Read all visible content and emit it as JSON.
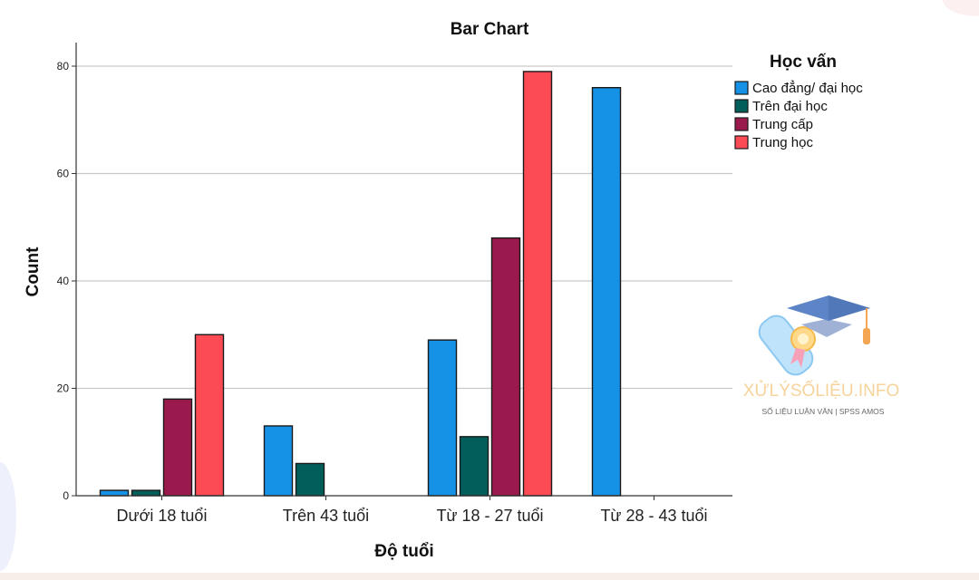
{
  "chart_data": {
    "type": "bar",
    "title": "Bar Chart",
    "xlabel": "Độ tuổi",
    "ylabel": "Count",
    "categories": [
      "Dưới 18 tuổi",
      "Trên 43 tuổi",
      "Từ 18 - 27 tuổi",
      "Từ 28 - 43 tuổi"
    ],
    "ylim": [
      0,
      80
    ],
    "yticks": [
      0,
      20,
      40,
      60,
      80
    ],
    "grid": true,
    "legend": {
      "title": "Học vấn",
      "position": "right"
    },
    "series": [
      {
        "name": "Cao đẳng/ đại học",
        "color": "#1592e6",
        "values": [
          1,
          13,
          29,
          76
        ]
      },
      {
        "name": "Trên đại học",
        "color": "#025e5b",
        "values": [
          1,
          6,
          11,
          0
        ]
      },
      {
        "name": "Trung cấp",
        "color": "#9a1a4e",
        "values": [
          18,
          0,
          48,
          0
        ]
      },
      {
        "name": "Trung học",
        "color": "#fc4b55",
        "values": [
          30,
          0,
          79,
          0
        ]
      }
    ]
  },
  "watermark": {
    "brand": "XỬLÝSỐLIỆU.INFO",
    "tagline": "SỐ LIỆU LUẬN VĂN | SPSS AMOS",
    "icon": "graduation-cap-diploma-icon"
  }
}
